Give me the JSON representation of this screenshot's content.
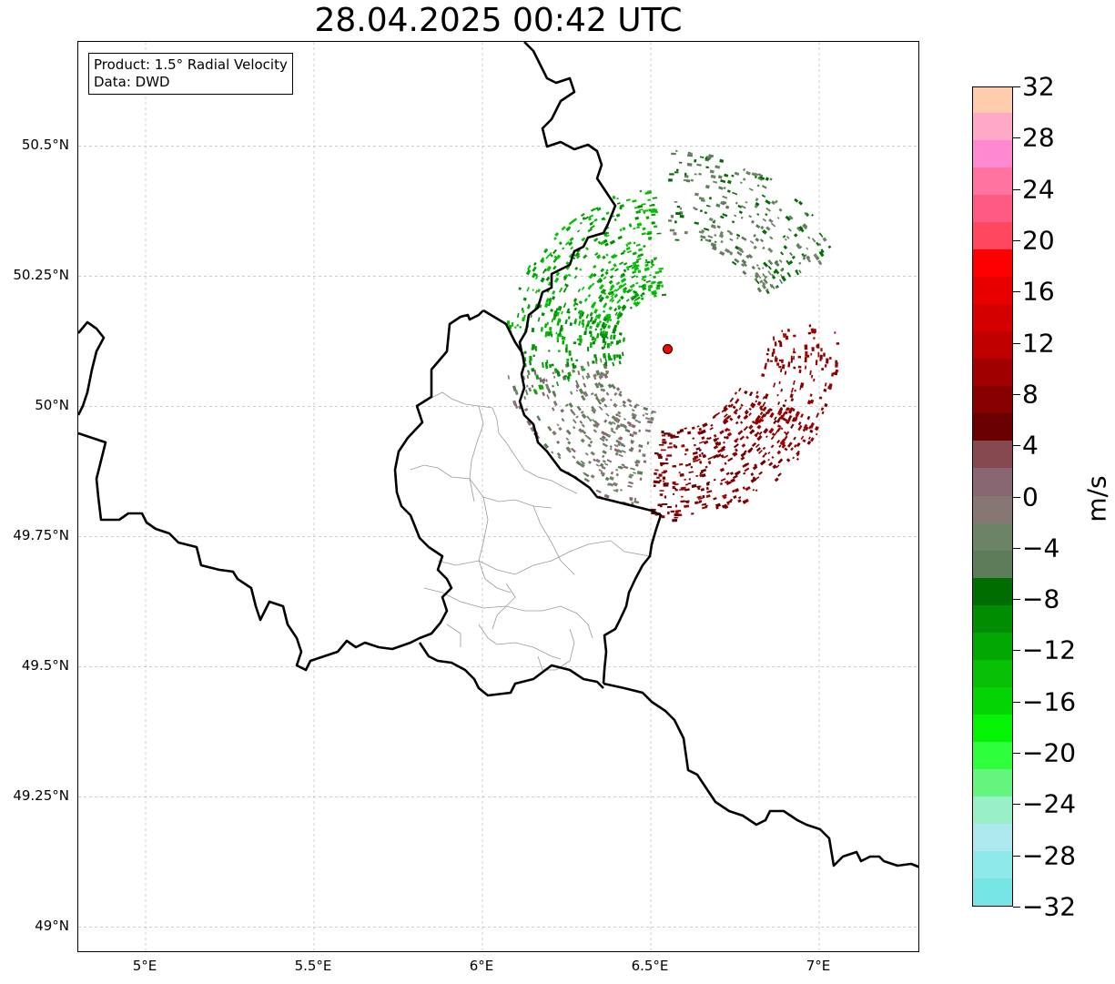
{
  "title": "28.04.2025 00:42 UTC",
  "info_box": {
    "product": "Product: 1.5° Radial Velocity",
    "data": "Data: DWD"
  },
  "map": {
    "lon_range": [
      4.8,
      7.3
    ],
    "lat_range": [
      48.95,
      50.7
    ],
    "lon_ticks": [
      {
        "value": 5.0,
        "label": "5°E"
      },
      {
        "value": 5.5,
        "label": "5.5°E"
      },
      {
        "value": 6.0,
        "label": "6°E"
      },
      {
        "value": 6.5,
        "label": "6.5°E"
      },
      {
        "value": 7.0,
        "label": "7°E"
      }
    ],
    "lat_ticks": [
      {
        "value": 50.5,
        "label": "50.5°N"
      },
      {
        "value": 50.25,
        "label": "50.25°N"
      },
      {
        "value": 50.0,
        "label": "50°N"
      },
      {
        "value": 49.75,
        "label": "49.75°N"
      },
      {
        "value": 49.5,
        "label": "49.5°N"
      },
      {
        "value": 49.25,
        "label": "49.25°N"
      },
      {
        "value": 49.0,
        "label": "49°N"
      }
    ],
    "radar_site": {
      "lon": 6.55,
      "lat": 50.11
    },
    "grid": true
  },
  "colorbar": {
    "unit": "m/s",
    "min": -32,
    "max": 32,
    "tick_labels": [
      {
        "value": 32,
        "label": "32"
      },
      {
        "value": 28,
        "label": "28"
      },
      {
        "value": 24,
        "label": "24"
      },
      {
        "value": 20,
        "label": "20"
      },
      {
        "value": 16,
        "label": "16"
      },
      {
        "value": 12,
        "label": "12"
      },
      {
        "value": 8,
        "label": "8"
      },
      {
        "value": 4,
        "label": "4"
      },
      {
        "value": 0,
        "label": "0"
      },
      {
        "value": -4,
        "label": "−4"
      },
      {
        "value": -8,
        "label": "−8"
      },
      {
        "value": -12,
        "label": "−12"
      },
      {
        "value": -16,
        "label": "−16"
      },
      {
        "value": -20,
        "label": "−20"
      },
      {
        "value": -24,
        "label": "−24"
      },
      {
        "value": -28,
        "label": "−28"
      },
      {
        "value": -32,
        "label": "−32"
      }
    ],
    "colors": [
      "#76e5e5",
      "#8eeaea",
      "#ade8ee",
      "#99efc8",
      "#63f57e",
      "#2dff3c",
      "#05f405",
      "#04d404",
      "#05c005",
      "#03a703",
      "#018d01",
      "#006d00",
      "#5d7d5a",
      "#6c8465",
      "#877774",
      "#886672",
      "#874950",
      "#6a0000",
      "#870000",
      "#a10000",
      "#c00000",
      "#d40000",
      "#e80000",
      "#ff0000",
      "#ff4760",
      "#ff5a82",
      "#ff73a0",
      "#ff88d0",
      "#ffa8c8",
      "#ffcbad"
    ]
  }
}
